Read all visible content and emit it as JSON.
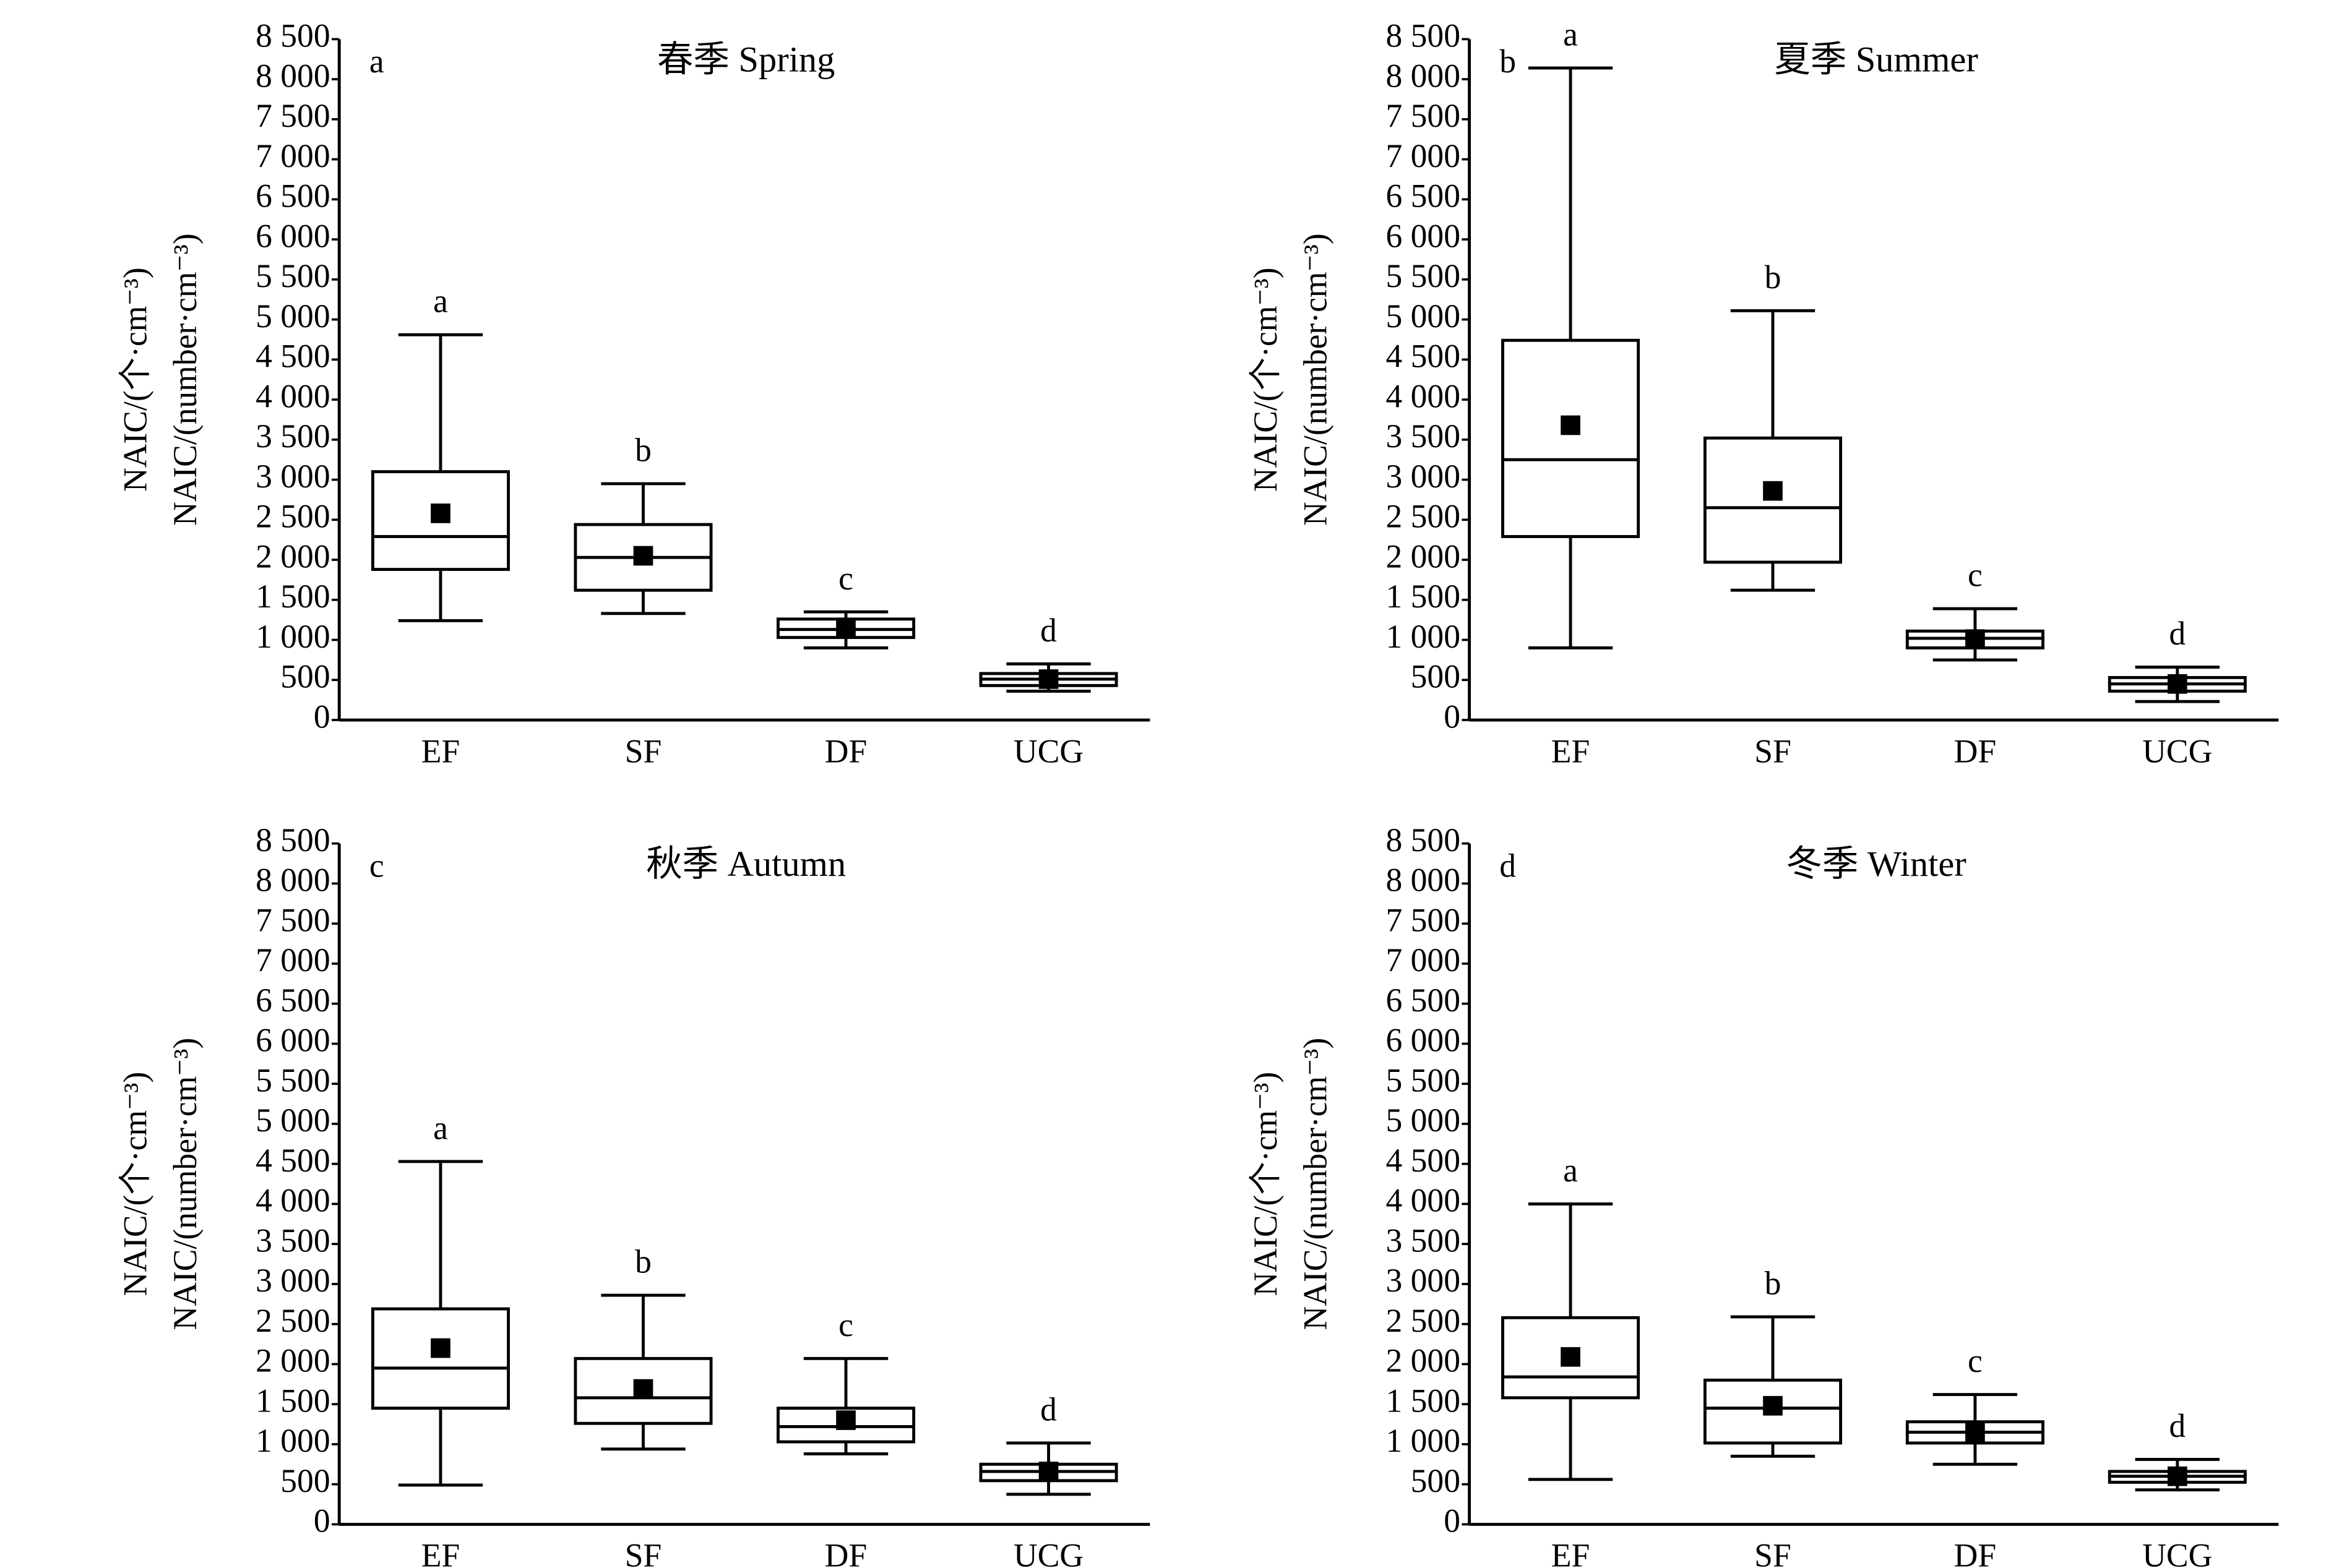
{
  "chart_data": [
    {
      "type": "box",
      "panel": "a",
      "title": "春季 Spring",
      "ylabel": "NAIC/(个·cm⁻³)",
      "ylabel2": "NAIC/(number·cm⁻³)",
      "categories": [
        "EF",
        "SF",
        "DF",
        "UCG"
      ],
      "color": "#000000",
      "boxes": [
        {
          "whislo": 1240,
          "q1": 1880,
          "med": 2290,
          "q3": 3100,
          "whishi": 4810,
          "mean": 2580
        },
        {
          "whislo": 1330,
          "q1": 1620,
          "med": 2030,
          "q3": 2440,
          "whishi": 2950,
          "mean": 2050
        },
        {
          "whislo": 900,
          "q1": 1030,
          "med": 1130,
          "q3": 1260,
          "whishi": 1350,
          "mean": 1150
        },
        {
          "whislo": 360,
          "q1": 430,
          "med": 510,
          "q3": 580,
          "whishi": 700,
          "mean": 510
        }
      ],
      "annotations": [
        "a",
        "b",
        "c",
        "d"
      ],
      "ylim": [
        0,
        8500
      ],
      "yticks": [
        0,
        500,
        {
          "value": 1000,
          "label": "1 000"
        },
        {
          "value": 1500,
          "label": "1 500"
        },
        {
          "value": 2000,
          "label": "2 000"
        },
        {
          "value": 2500,
          "label": "2 500"
        },
        {
          "value": 3000,
          "label": "3 000"
        },
        {
          "value": 3500,
          "label": "3 500"
        },
        {
          "value": 4000,
          "label": "4 000"
        },
        {
          "value": 4500,
          "label": "4 500"
        },
        {
          "value": 5000,
          "label": "5 000"
        },
        {
          "value": 5500,
          "label": "5 500"
        },
        {
          "value": 6000,
          "label": "6 000"
        },
        {
          "value": 6500,
          "label": "6 500"
        },
        {
          "value": 7000,
          "label": "7 000"
        },
        {
          "value": 7500,
          "label": "7 500"
        },
        {
          "value": 8000,
          "label": "8 000"
        },
        {
          "value": 8500,
          "label": "8 500"
        }
      ]
    },
    {
      "type": "box",
      "panel": "b",
      "title": "夏季 Summer",
      "ylabel": "NAIC/(个·cm⁻³)",
      "ylabel2": "NAIC/(number·cm⁻³)",
      "categories": [
        "EF",
        "SF",
        "DF",
        "UCG"
      ],
      "color": "#000000",
      "boxes": [
        {
          "whislo": 900,
          "q1": 2290,
          "med": 3250,
          "q3": 4740,
          "whishi": 8140,
          "mean": 3680
        },
        {
          "whislo": 1620,
          "q1": 1970,
          "med": 2650,
          "q3": 3520,
          "whishi": 5110,
          "mean": 2860
        },
        {
          "whislo": 750,
          "q1": 900,
          "med": 1020,
          "q3": 1110,
          "whishi": 1390,
          "mean": 1010
        },
        {
          "whislo": 230,
          "q1": 360,
          "med": 450,
          "q3": 530,
          "whishi": 660,
          "mean": 450
        }
      ],
      "annotations": [
        "a",
        "b",
        "c",
        "d"
      ],
      "ylim": [
        0,
        8500
      ],
      "yticks": [
        0,
        500,
        {
          "value": 1000,
          "label": "1 000"
        },
        {
          "value": 1500,
          "label": "1 500"
        },
        {
          "value": 2000,
          "label": "2 000"
        },
        {
          "value": 2500,
          "label": "2 500"
        },
        {
          "value": 3000,
          "label": "3 000"
        },
        {
          "value": 3500,
          "label": "3 500"
        },
        {
          "value": 4000,
          "label": "4 000"
        },
        {
          "value": 4500,
          "label": "4 500"
        },
        {
          "value": 5000,
          "label": "5 000"
        },
        {
          "value": 5500,
          "label": "5 500"
        },
        {
          "value": 6000,
          "label": "6 000"
        },
        {
          "value": 6500,
          "label": "6 500"
        },
        {
          "value": 7000,
          "label": "7 000"
        },
        {
          "value": 7500,
          "label": "7 500"
        },
        {
          "value": 8000,
          "label": "8 000"
        },
        {
          "value": 8500,
          "label": "8 500"
        }
      ]
    },
    {
      "type": "box",
      "panel": "c",
      "title": "秋季 Autumn",
      "ylabel": "NAIC/(个·cm⁻³)",
      "ylabel2": "NAIC/(number·cm⁻³)",
      "categories": [
        "EF",
        "SF",
        "DF",
        "UCG"
      ],
      "color": "#000000",
      "boxes": [
        {
          "whislo": 490,
          "q1": 1450,
          "med": 1950,
          "q3": 2690,
          "whishi": 4530,
          "mean": 2200
        },
        {
          "whislo": 940,
          "q1": 1260,
          "med": 1580,
          "q3": 2070,
          "whishi": 2860,
          "mean": 1690
        },
        {
          "whislo": 880,
          "q1": 1030,
          "med": 1220,
          "q3": 1450,
          "whishi": 2070,
          "mean": 1300
        },
        {
          "whislo": 375,
          "q1": 545,
          "med": 660,
          "q3": 750,
          "whishi": 1015,
          "mean": 660
        }
      ],
      "annotations": [
        "a",
        "b",
        "c",
        "d"
      ],
      "ylim": [
        0,
        8500
      ],
      "yticks": [
        0,
        500,
        {
          "value": 1000,
          "label": "1 000"
        },
        {
          "value": 1500,
          "label": "1 500"
        },
        {
          "value": 2000,
          "label": "2 000"
        },
        {
          "value": 2500,
          "label": "2 500"
        },
        {
          "value": 3000,
          "label": "3 000"
        },
        {
          "value": 3500,
          "label": "3 500"
        },
        {
          "value": 4000,
          "label": "4 000"
        },
        {
          "value": 4500,
          "label": "4 500"
        },
        {
          "value": 5000,
          "label": "5 000"
        },
        {
          "value": 5500,
          "label": "5 500"
        },
        {
          "value": 6000,
          "label": "6 000"
        },
        {
          "value": 6500,
          "label": "6 500"
        },
        {
          "value": 7000,
          "label": "7 000"
        },
        {
          "value": 7500,
          "label": "7 500"
        },
        {
          "value": 8000,
          "label": "8 000"
        },
        {
          "value": 8500,
          "label": "8 500"
        }
      ]
    },
    {
      "type": "box",
      "panel": "d",
      "title": "冬季 Winter",
      "ylabel": "NAIC/(个·cm⁻³)",
      "ylabel2": "NAIC/(number·cm⁻³)",
      "categories": [
        "EF",
        "SF",
        "DF",
        "UCG"
      ],
      "color": "#000000",
      "boxes": [
        {
          "whislo": 560,
          "q1": 1580,
          "med": 1840,
          "q3": 2580,
          "whishi": 4000,
          "mean": 2090
        },
        {
          "whislo": 850,
          "q1": 1015,
          "med": 1450,
          "q3": 1800,
          "whishi": 2590,
          "mean": 1480
        },
        {
          "whislo": 750,
          "q1": 1015,
          "med": 1150,
          "q3": 1280,
          "whishi": 1620,
          "mean": 1150
        },
        {
          "whislo": 430,
          "q1": 525,
          "med": 600,
          "q3": 660,
          "whishi": 810,
          "mean": 600
        }
      ],
      "annotations": [
        "a",
        "b",
        "c",
        "d"
      ],
      "ylim": [
        0,
        8500
      ],
      "yticks": [
        0,
        500,
        {
          "value": 1000,
          "label": "1 000"
        },
        {
          "value": 1500,
          "label": "1 500"
        },
        {
          "value": 2000,
          "label": "2 000"
        },
        {
          "value": 2500,
          "label": "2 500"
        },
        {
          "value": 3000,
          "label": "3 000"
        },
        {
          "value": 3500,
          "label": "3 500"
        },
        {
          "value": 4000,
          "label": "4 000"
        },
        {
          "value": 4500,
          "label": "4 500"
        },
        {
          "value": 5000,
          "label": "5 000"
        },
        {
          "value": 5500,
          "label": "5 500"
        },
        {
          "value": 6000,
          "label": "6 000"
        },
        {
          "value": 6500,
          "label": "6 500"
        },
        {
          "value": 7000,
          "label": "7 000"
        },
        {
          "value": 7500,
          "label": "7 500"
        },
        {
          "value": 8000,
          "label": "8 000"
        },
        {
          "value": 8500,
          "label": "8 500"
        }
      ]
    }
  ]
}
